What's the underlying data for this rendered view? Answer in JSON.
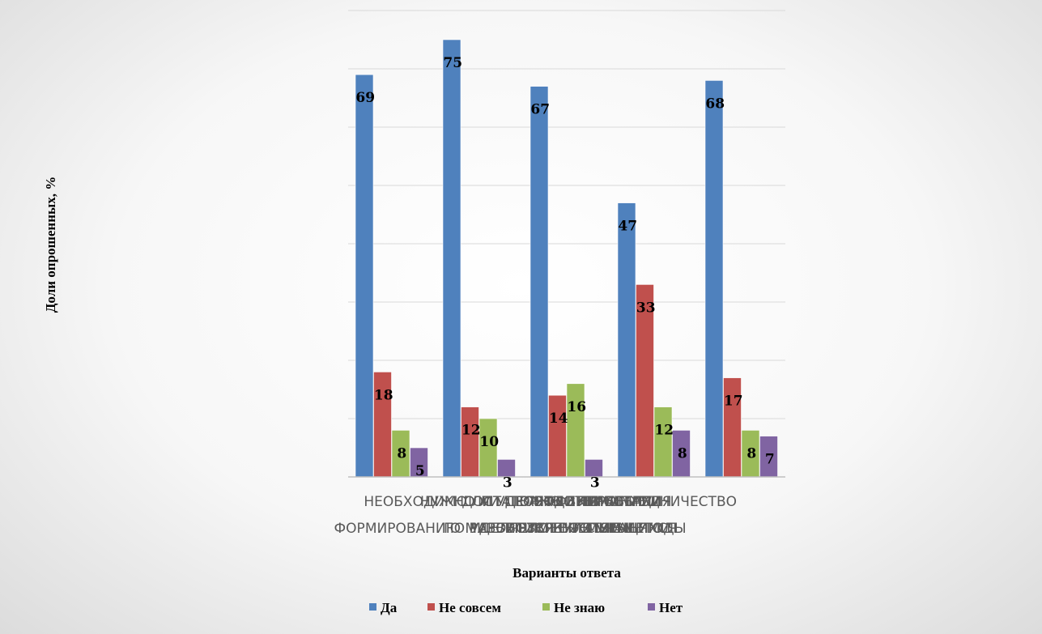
{
  "chart_data": {
    "type": "bar",
    "title": "",
    "xlabel": "Варианты ответа",
    "ylabel": "Доли опрошенных, %",
    "ylim": [
      0,
      80
    ],
    "grid": true,
    "legend_position": "bottom",
    "categories": [
      "НЕОБХОДИМО ЛИ УДЕЛЯТЬ ВНИМАНИЕ ФОРМИРОВАНИЮ МИРОВОЗЗРЕНИЯ УЧАЩИХСЯ",
      "НУЖНО ЛИ ПРОВОДИТЬ РАБОТУ ПО РАЗВИТИЮ КУЛЬТУРЫ",
      "ДОСТАТОЧНО ЛИ ВНИМАНИЯ УДЕЛЯЕТСЯ ВОСПИТАНИЮ",
      "ЭФФЕКТИВНЫ ЛИ ПРИМЕНЯЕМЫЕ МЕТОДЫ",
      "ВАЖНО ЛИ СОТРУДНИЧЕСТВО С СЕМЬЯМИ"
    ],
    "series": [
      {
        "name": "Да",
        "color": "#4f81bd",
        "values": [
          69,
          75,
          67,
          47,
          68
        ]
      },
      {
        "name": "Не совсем",
        "color": "#c0504d",
        "values": [
          18,
          12,
          14,
          33,
          17
        ]
      },
      {
        "name": "Не знаю",
        "color": "#9bbb59",
        "values": [
          8,
          10,
          16,
          12,
          8
        ]
      },
      {
        "name": "Нет",
        "color": "#8064a2",
        "values": [
          5,
          3,
          3,
          8,
          7
        ]
      }
    ]
  }
}
